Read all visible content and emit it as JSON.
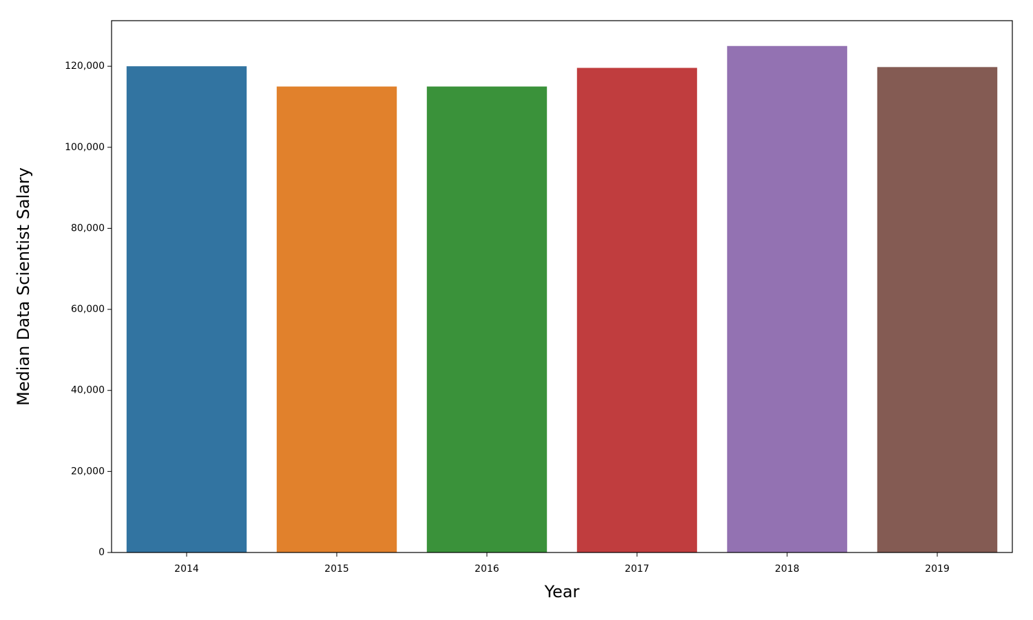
{
  "chart_data": {
    "type": "bar",
    "x_label": "Year",
    "y_label": "Median Data Scientist Salary",
    "categories": [
      "2014",
      "2015",
      "2016",
      "2017",
      "2018",
      "2019"
    ],
    "values": [
      120000,
      115000,
      115000,
      119600,
      125000,
      119800
    ],
    "colors": [
      "#3274a1",
      "#e1812c",
      "#3a923a",
      "#c03d3e",
      "#9372b2",
      "#845b53"
    ],
    "ylim": [
      0,
      131250
    ],
    "yticks": [
      0,
      {
        "value": 20000,
        "label": "20,000"
      },
      {
        "value": 40000,
        "label": "40,000"
      },
      {
        "value": 60000,
        "label": "60,000"
      },
      {
        "value": 80000,
        "label": "80,000"
      },
      {
        "value": 100000,
        "label": "100,000"
      },
      {
        "value": 120000,
        "label": "120,000"
      }
    ],
    "grid": false
  }
}
